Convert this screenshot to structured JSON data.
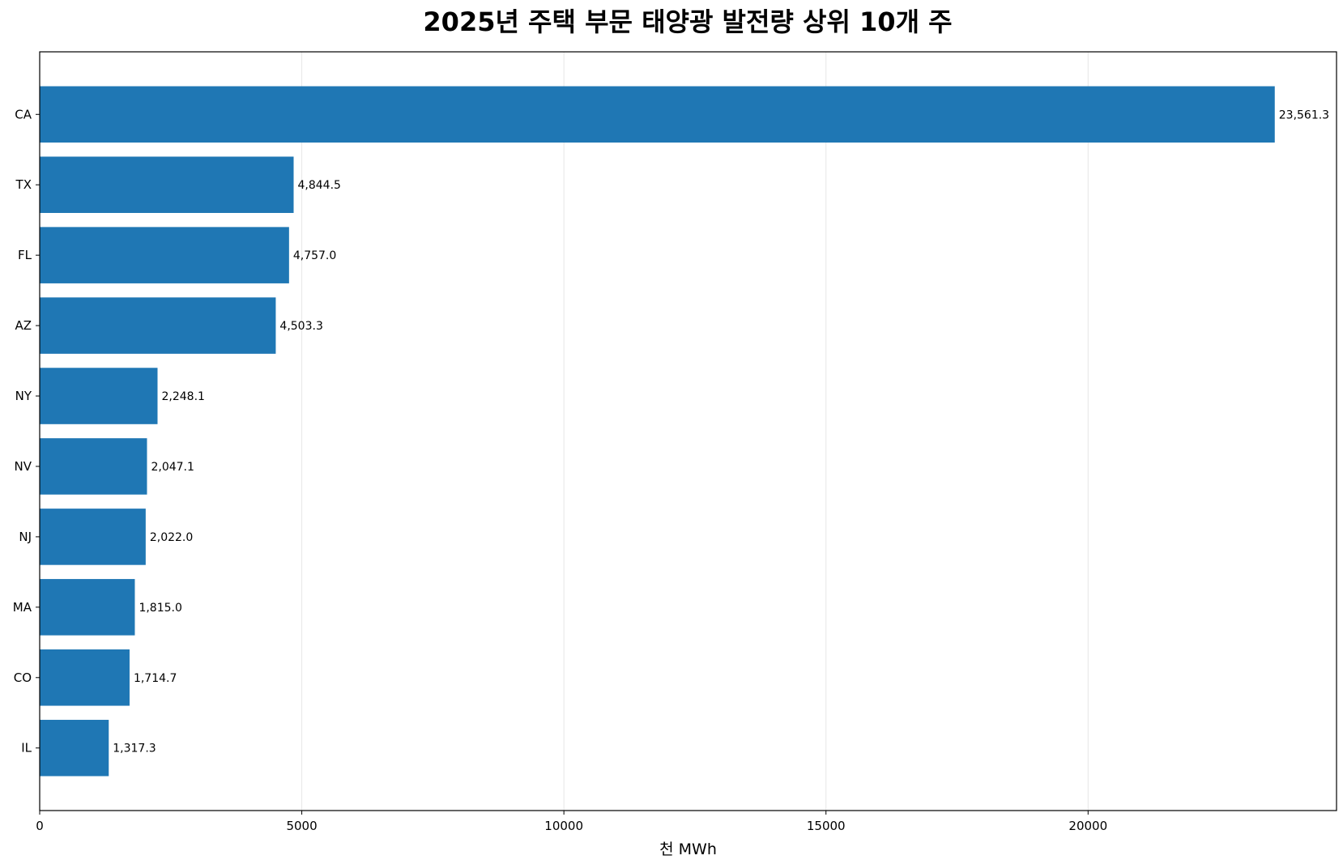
{
  "chart_data": {
    "type": "bar",
    "orientation": "horizontal",
    "title": "2025년 주택 부문 태양광 발전량 상위 10개 주",
    "xlabel": "천 MWh",
    "ylabel": "",
    "categories": [
      "CA",
      "TX",
      "FL",
      "AZ",
      "NY",
      "NV",
      "NJ",
      "MA",
      "CO",
      "IL"
    ],
    "values": [
      23561.3,
      4844.5,
      4757.0,
      4503.3,
      2248.1,
      2047.1,
      2022.0,
      1815.0,
      1714.7,
      1317.3
    ],
    "value_labels": [
      "23,561.3",
      "4,844.5",
      "4,757.0",
      "4,503.3",
      "2,248.1",
      "2,047.1",
      "2,022.0",
      "1,815.0",
      "1,714.7",
      "1,317.3"
    ],
    "xlim": [
      0,
      24739.4
    ],
    "xticks": [
      0,
      5000,
      10000,
      15000,
      20000
    ],
    "xtick_labels": [
      "0",
      "5000",
      "10000",
      "15000",
      "20000"
    ],
    "grid": "x",
    "bar_color": "#1f77b4",
    "grid_color": "#e6e6e6"
  }
}
